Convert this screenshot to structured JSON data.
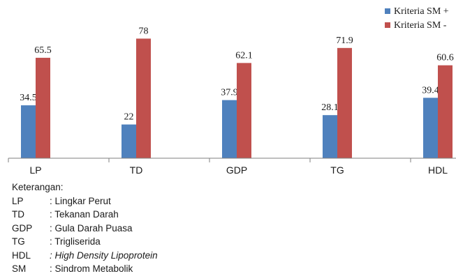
{
  "chart_data": {
    "type": "bar",
    "categories": [
      "LP",
      "TD",
      "GDP",
      "TG",
      "HDL"
    ],
    "series": [
      {
        "name": "Kriteria SM +",
        "values": [
          34.5,
          22,
          37.9,
          28.1,
          39.4
        ],
        "color": "#4f81bd"
      },
      {
        "name": "Kriteria SM -",
        "values": [
          65.5,
          78,
          62.1,
          71.9,
          60.6
        ],
        "color": "#c0504d"
      }
    ],
    "value_labels": {
      "series_0": [
        "34.5",
        "22",
        "37.9",
        "28.1",
        "39.4"
      ],
      "series_1": [
        "65.5",
        "78",
        "62.1",
        "71.9",
        "60.6"
      ]
    },
    "ylim": [
      0,
      80
    ],
    "grid": false,
    "legend": "top-right"
  },
  "legend_note": {
    "heading": "Keterangan:",
    "items": [
      {
        "abbr": "LP",
        "definition": ": Lingkar Perut",
        "italic": false
      },
      {
        "abbr": "TD",
        "definition": ": Tekanan Darah",
        "italic": false
      },
      {
        "abbr": "GDP",
        "definition": ": Gula Darah Puasa",
        "italic": false
      },
      {
        "abbr": "TG",
        "definition": ": Trigliserida",
        "italic": false
      },
      {
        "abbr": "HDL",
        "definition": ": High Density Lipoprotein",
        "italic": true
      },
      {
        "abbr": "SM",
        "definition": ": Sindrom Metabolik",
        "italic": false
      }
    ]
  }
}
